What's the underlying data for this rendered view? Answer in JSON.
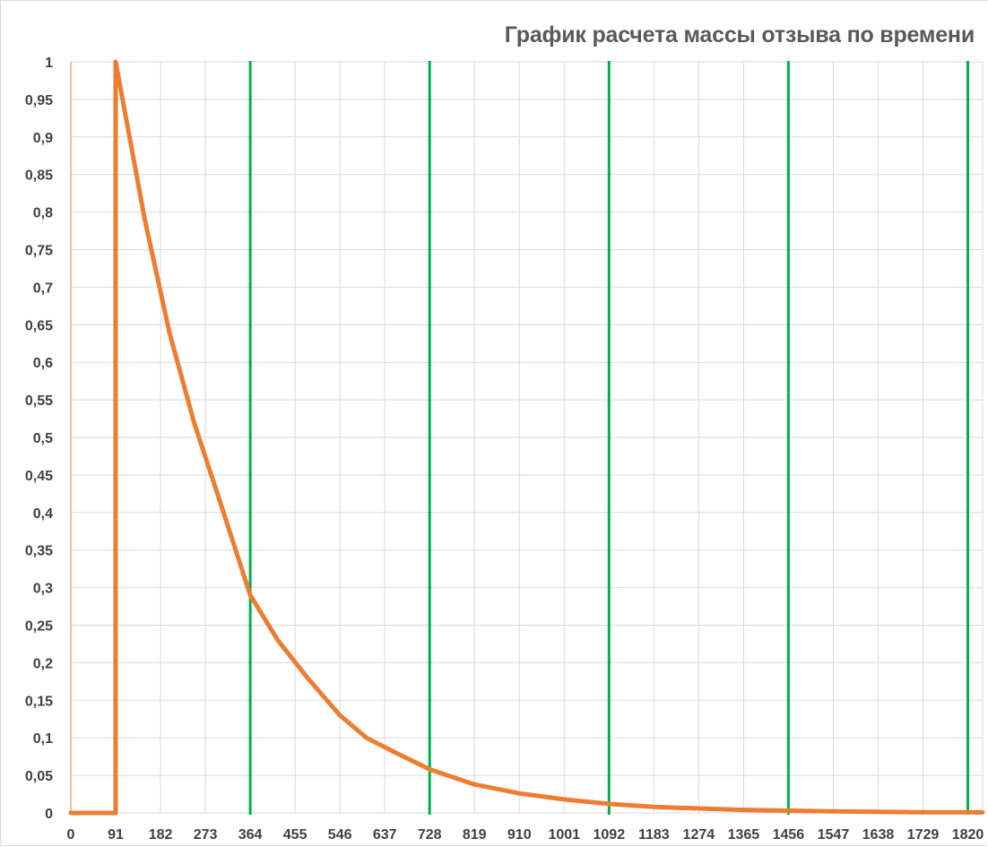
{
  "chart_data": {
    "type": "line",
    "title": "График расчета массы отзыва по времени",
    "xlabel": "",
    "ylabel": "",
    "xlim": [
      0,
      1850
    ],
    "ylim": [
      0,
      1
    ],
    "x_ticks": [
      "0",
      "91",
      "182",
      "273",
      "364",
      "455",
      "546",
      "637",
      "728",
      "819",
      "910",
      "1001",
      "1092",
      "1183",
      "1274",
      "1365",
      "1456",
      "1547",
      "1638",
      "1729",
      "1820"
    ],
    "y_ticks": [
      "0",
      "0,05",
      "0,1",
      "0,15",
      "0,2",
      "0,25",
      "0,3",
      "0,35",
      "0,4",
      "0,45",
      "0,5",
      "0,55",
      "0,6",
      "0,65",
      "0,7",
      "0,75",
      "0,8",
      "0,85",
      "0,9",
      "0,95",
      "1"
    ],
    "grid": true,
    "series": [
      {
        "color": "#ed7d31",
        "x": [
          0,
          91,
          91,
          150,
          200,
          250,
          300,
          364,
          420,
          480,
          546,
          600,
          660,
          728,
          819,
          910,
          1001,
          1092,
          1183,
          1274,
          1365,
          1456,
          1547,
          1638,
          1729,
          1820,
          1850
        ],
        "y": [
          0,
          0,
          1.0,
          0.79,
          0.64,
          0.52,
          0.42,
          0.29,
          0.23,
          0.18,
          0.13,
          0.1,
          0.08,
          0.058,
          0.038,
          0.026,
          0.018,
          0.012,
          0.008,
          0.006,
          0.004,
          0.003,
          0.002,
          0.0015,
          0.001,
          0.0008,
          0.0007
        ]
      }
    ],
    "vertical_markers": {
      "color": "#00b050",
      "x": [
        91,
        364,
        728,
        1092,
        1456,
        1820
      ]
    }
  }
}
